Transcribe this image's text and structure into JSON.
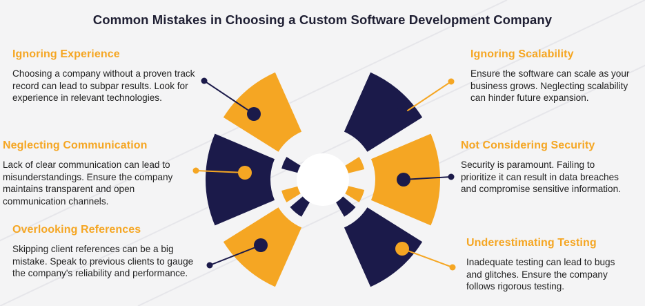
{
  "title": "Common Mistakes in Choosing a Custom Software Development Company",
  "colors": {
    "accent": "#f5a623",
    "navy": "#1b1a4a",
    "text": "#222222"
  },
  "left": [
    {
      "heading": "Ignoring Experience",
      "body": "Choosing a company without a proven track record can lead to subpar results. Look for experience in relevant technologies."
    },
    {
      "heading": "Neglecting Communication",
      "body": "Lack of clear communication can lead to misunderstandings. Ensure the company maintains transparent and open communication channels."
    },
    {
      "heading": "Overlooking References",
      "body": "Skipping client references can be a big mistake. Speak to previous clients to gauge the company's reliability and performance."
    }
  ],
  "right": [
    {
      "heading": "Ignoring Scalability",
      "body": "Ensure the software can scale as your business grows. Neglecting scalability can hinder future expansion."
    },
    {
      "heading": "Not Considering Security",
      "body": "Security is paramount. Failing to prioritize it can result in data breaches and compromise sensitive information."
    },
    {
      "heading": "Underestimating Testing",
      "body": "Inadequate testing can lead to bugs and glitches. Ensure the company follows rigorous testing."
    }
  ]
}
